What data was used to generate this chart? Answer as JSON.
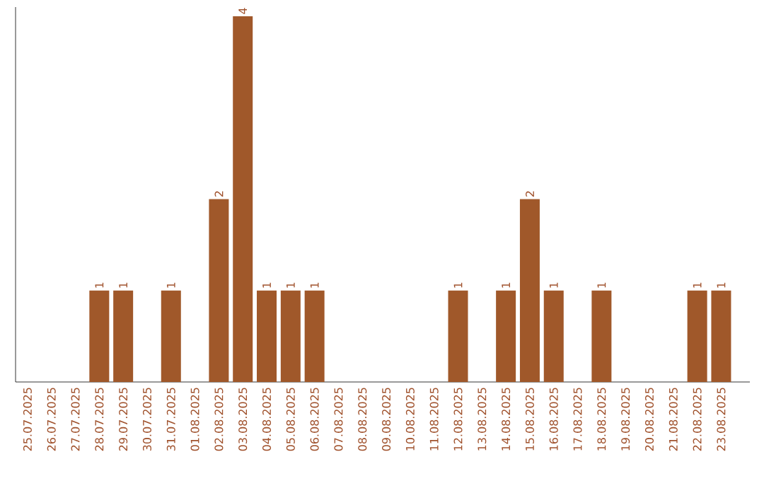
{
  "chart_data": {
    "type": "bar",
    "categories": [
      "25.07.2025",
      "26.07.2025",
      "27.07.2025",
      "28.07.2025",
      "29.07.2025",
      "30.07.2025",
      "31.07.2025",
      "01.08.2025",
      "02.08.2025",
      "03.08.2025",
      "04.08.2025",
      "05.08.2025",
      "06.08.2025",
      "07.08.2025",
      "08.08.2025",
      "09.08.2025",
      "10.08.2025",
      "11.08.2025",
      "12.08.2025",
      "13.08.2025",
      "14.08.2025",
      "15.08.2025",
      "16.08.2025",
      "17.08.2025",
      "18.08.2025",
      "19.08.2025",
      "20.08.2025",
      "21.08.2025",
      "22.08.2025",
      "23.08.2025"
    ],
    "values": [
      0,
      0,
      0,
      1,
      1,
      0,
      1,
      0,
      2,
      4,
      1,
      1,
      1,
      0,
      0,
      0,
      0,
      0,
      1,
      0,
      1,
      2,
      1,
      0,
      1,
      0,
      0,
      0,
      1,
      1
    ],
    "value_labels": [
      null,
      null,
      null,
      "1",
      "1",
      null,
      "1",
      null,
      "2",
      "4",
      "1",
      "1",
      "1",
      null,
      null,
      null,
      null,
      null,
      "1",
      null,
      "1",
      "2",
      "1",
      null,
      "1",
      null,
      null,
      null,
      "1",
      "1"
    ],
    "color": "#a0582a",
    "ylim": [
      0,
      4.1
    ]
  }
}
